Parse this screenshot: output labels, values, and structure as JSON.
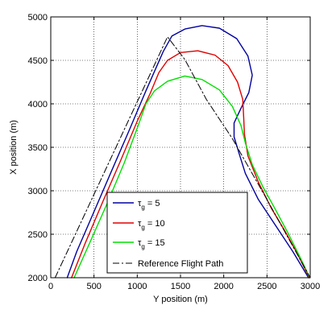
{
  "chart_data": {
    "type": "line",
    "title": "",
    "xlabel": "Y position (m)",
    "ylabel": "X position (m)",
    "xlim": [
      0,
      3000
    ],
    "ylim": [
      2000,
      5000
    ],
    "x_ticks": [
      "0",
      "500",
      "1000",
      "1500",
      "2000",
      "2500",
      "3000"
    ],
    "y_ticks": [
      "2000",
      "2500",
      "3000",
      "3500",
      "4000",
      "4500",
      "5000"
    ],
    "grid": true,
    "legend_position": "bottom-center",
    "series": [
      {
        "name": "τg = 5",
        "legend_main": "τ",
        "legend_sub": "g",
        "legend_suffix": " = 5",
        "color": "#0000a0",
        "dash": "solid",
        "points": [
          [
            190,
            2000
          ],
          [
            300,
            2300
          ],
          [
            500,
            2760
          ],
          [
            700,
            3220
          ],
          [
            900,
            3680
          ],
          [
            1100,
            4150
          ],
          [
            1300,
            4600
          ],
          [
            1400,
            4780
          ],
          [
            1550,
            4860
          ],
          [
            1750,
            4900
          ],
          [
            1950,
            4870
          ],
          [
            2150,
            4750
          ],
          [
            2280,
            4550
          ],
          [
            2330,
            4330
          ],
          [
            2290,
            4130
          ],
          [
            2200,
            3950
          ],
          [
            2120,
            3780
          ],
          [
            2120,
            3620
          ],
          [
            2180,
            3420
          ],
          [
            2250,
            3200
          ],
          [
            2400,
            2900
          ],
          [
            2600,
            2600
          ],
          [
            2800,
            2300
          ],
          [
            2980,
            2000
          ]
        ]
      },
      {
        "name": "τg = 10",
        "legend_main": "τ",
        "legend_sub": "g",
        "legend_suffix": " = 10",
        "color": "#e00000",
        "dash": "solid",
        "points": [
          [
            240,
            2000
          ],
          [
            400,
            2400
          ],
          [
            600,
            2870
          ],
          [
            800,
            3330
          ],
          [
            1000,
            3800
          ],
          [
            1150,
            4120
          ],
          [
            1250,
            4360
          ],
          [
            1350,
            4500
          ],
          [
            1500,
            4590
          ],
          [
            1700,
            4610
          ],
          [
            1900,
            4560
          ],
          [
            2050,
            4440
          ],
          [
            2160,
            4250
          ],
          [
            2220,
            4050
          ],
          [
            2230,
            3850
          ],
          [
            2240,
            3650
          ],
          [
            2280,
            3400
          ],
          [
            2400,
            3100
          ],
          [
            2550,
            2800
          ],
          [
            2700,
            2550
          ],
          [
            2850,
            2280
          ],
          [
            2990,
            2000
          ]
        ]
      },
      {
        "name": "τg = 15",
        "legend_main": "τ",
        "legend_sub": "g",
        "legend_suffix": " = 15",
        "color": "#00e000",
        "dash": "solid",
        "points": [
          [
            270,
            2000
          ],
          [
            450,
            2400
          ],
          [
            650,
            2850
          ],
          [
            850,
            3320
          ],
          [
            1000,
            3720
          ],
          [
            1100,
            4000
          ],
          [
            1200,
            4150
          ],
          [
            1350,
            4260
          ],
          [
            1550,
            4320
          ],
          [
            1750,
            4280
          ],
          [
            1950,
            4160
          ],
          [
            2100,
            3970
          ],
          [
            2200,
            3750
          ],
          [
            2250,
            3550
          ],
          [
            2330,
            3300
          ],
          [
            2450,
            3050
          ],
          [
            2600,
            2780
          ],
          [
            2750,
            2500
          ],
          [
            2900,
            2200
          ],
          [
            2995,
            2000
          ]
        ]
      },
      {
        "name": "Reference Flight Path",
        "legend_main": "Reference Flight Path",
        "legend_sub": "",
        "legend_suffix": "",
        "color": "#000000",
        "dash": "dashdot",
        "points": [
          [
            50,
            2000
          ],
          [
            1350,
            4770
          ],
          [
            1550,
            4510
          ],
          [
            1800,
            4050
          ],
          [
            2100,
            3600
          ],
          [
            2500,
            2900
          ],
          [
            3000,
            2000
          ]
        ]
      }
    ]
  }
}
